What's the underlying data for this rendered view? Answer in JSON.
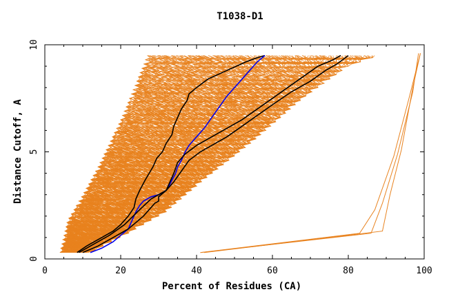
{
  "chart_data": {
    "type": "line",
    "title": "T1038-D1",
    "xlabel": "Percent of Residues (CA)",
    "ylabel": "Distance Cutoff, A",
    "xlim": [
      0,
      100
    ],
    "ylim": [
      0,
      10
    ],
    "x_ticks": [
      "0",
      "20",
      "40",
      "60",
      "80",
      "100"
    ],
    "y_ticks": [
      "0",
      "5",
      "10"
    ],
    "grid": false,
    "legend": "none",
    "colors": {
      "bundle": "#e8821e",
      "highlight_black": "#000000",
      "highlight_blue": "#0000ee",
      "axis": "#000000"
    },
    "bundle_count": 140,
    "bundle_envelope": {
      "left": [
        [
          4,
          0.3
        ],
        [
          6,
          1.8
        ],
        [
          10,
          3.0
        ],
        [
          14,
          4.3
        ],
        [
          20,
          6.5
        ],
        [
          24,
          8.2
        ],
        [
          27,
          9.5
        ]
      ],
      "right": [
        [
          12,
          0.3
        ],
        [
          22,
          1.2
        ],
        [
          32,
          2.2
        ],
        [
          42,
          3.7
        ],
        [
          55,
          5.5
        ],
        [
          68,
          7.5
        ],
        [
          80,
          9.0
        ],
        [
          88,
          9.5
        ]
      ]
    },
    "outlier_curves": [
      [
        [
          41,
          0.3
        ],
        [
          83,
          1.2
        ],
        [
          87,
          2.3
        ],
        [
          92,
          4.8
        ],
        [
          96,
          7.5
        ],
        [
          99,
          9.6
        ]
      ],
      [
        [
          41,
          0.3
        ],
        [
          86,
          1.2
        ],
        [
          89,
          2.6
        ],
        [
          93,
          4.9
        ],
        [
          97,
          7.8
        ],
        [
          98.5,
          9.6
        ]
      ],
      [
        [
          42,
          0.3
        ],
        [
          89,
          1.3
        ],
        [
          91,
          3.0
        ],
        [
          94,
          5.1
        ],
        [
          97,
          8.0
        ],
        [
          99,
          9.6
        ]
      ]
    ],
    "series": [
      {
        "color": "#000000",
        "x": [
          8.5,
          11,
          15,
          18,
          20,
          22,
          23.5,
          24,
          25,
          26.5,
          27.5,
          28.5,
          29.5,
          31,
          32,
          33.5,
          34,
          35,
          36,
          37.5,
          38,
          40,
          43,
          48,
          53,
          56,
          58
        ],
        "y": [
          0.3,
          0.6,
          1.0,
          1.3,
          1.6,
          2.0,
          2.4,
          2.8,
          3.2,
          3.7,
          4.0,
          4.3,
          4.7,
          5.0,
          5.4,
          5.8,
          6.2,
          6.6,
          7.0,
          7.4,
          7.7,
          8.0,
          8.4,
          8.8,
          9.2,
          9.4,
          9.5
        ]
      },
      {
        "color": "#0000ee",
        "x": [
          12,
          15,
          18,
          20,
          22,
          24,
          25,
          26,
          28,
          30,
          32,
          33,
          34.5,
          35,
          36,
          37,
          38,
          40,
          42,
          44,
          46,
          48,
          50,
          52,
          54,
          55,
          56,
          58
        ],
        "y": [
          0.3,
          0.5,
          0.8,
          1.1,
          1.4,
          2.2,
          2.5,
          2.7,
          2.9,
          3.0,
          3.2,
          3.5,
          4.0,
          4.3,
          4.6,
          5.0,
          5.3,
          5.7,
          6.1,
          6.6,
          7.1,
          7.6,
          8.0,
          8.4,
          8.8,
          9.0,
          9.2,
          9.5
        ]
      },
      {
        "color": "#000000",
        "x": [
          9,
          13,
          17,
          21,
          25,
          28,
          30,
          32,
          33,
          34,
          35,
          37,
          40,
          44,
          48,
          52,
          56,
          60,
          64,
          68,
          72,
          76,
          78
        ],
        "y": [
          0.3,
          0.7,
          1.1,
          1.6,
          2.3,
          2.8,
          3.0,
          3.2,
          3.6,
          4.0,
          4.5,
          4.9,
          5.3,
          5.7,
          6.1,
          6.5,
          7.0,
          7.5,
          8.0,
          8.5,
          9.0,
          9.3,
          9.5
        ]
      },
      {
        "color": "#000000",
        "x": [
          10,
          14,
          18,
          22,
          26,
          29,
          30,
          30,
          32,
          34,
          36,
          38,
          41,
          44,
          48,
          52,
          56,
          60,
          65,
          70,
          74,
          77,
          80
        ],
        "y": [
          0.3,
          0.6,
          1.0,
          1.4,
          2.0,
          2.6,
          2.7,
          2.9,
          3.2,
          3.6,
          4.1,
          4.6,
          5.0,
          5.3,
          5.7,
          6.2,
          6.7,
          7.2,
          7.8,
          8.3,
          8.8,
          9.1,
          9.5
        ]
      }
    ]
  }
}
